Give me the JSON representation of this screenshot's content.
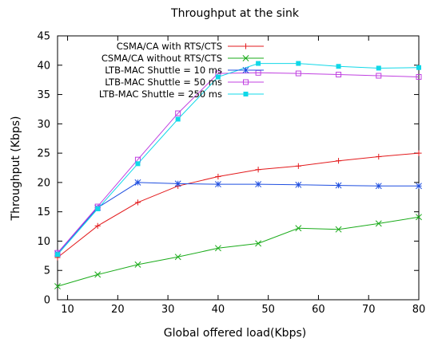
{
  "chart_data": {
    "type": "line",
    "title": "Throughput at the sink",
    "xlabel": "Global offered load(Kbps)",
    "ylabel": "Throughput (Kbps)",
    "xlim": [
      8,
      80
    ],
    "ylim": [
      0,
      45
    ],
    "x_ticks": [
      10,
      20,
      30,
      40,
      50,
      60,
      70,
      80
    ],
    "y_ticks": [
      0,
      5,
      10,
      15,
      20,
      25,
      30,
      35,
      40,
      45
    ],
    "grid": false,
    "legend_position": "top-right",
    "series": [
      {
        "name": "CSMA/CA with RTS/CTS",
        "color": "#e31a1c",
        "marker": "plus",
        "x": [
          8,
          16,
          24,
          32,
          40,
          48,
          56,
          64,
          72,
          80
        ],
        "y": [
          7.2,
          12.6,
          16.6,
          19.4,
          21.0,
          22.2,
          22.8,
          23.7,
          24.4,
          25.0
        ]
      },
      {
        "name": "CSMA/CA without RTS/CTS",
        "color": "#1aab1a",
        "marker": "x",
        "x": [
          8,
          16,
          24,
          32,
          40,
          48,
          56,
          64,
          72,
          80
        ],
        "y": [
          2.3,
          4.3,
          6.0,
          7.3,
          8.8,
          9.6,
          12.2,
          12.0,
          13.0,
          14.1
        ]
      },
      {
        "name": "LTB-MAC Shuttle = 10 ms",
        "color": "#1f4fe0",
        "marker": "star",
        "x": [
          8,
          16,
          24,
          32,
          40,
          48,
          56,
          64,
          72,
          80
        ],
        "y": [
          7.9,
          15.7,
          20.0,
          19.8,
          19.7,
          19.7,
          19.6,
          19.5,
          19.4,
          19.4
        ]
      },
      {
        "name": "LTB-MAC Shuttle = 50 ms",
        "color": "#c040e0",
        "marker": "square-open",
        "x": [
          8,
          16,
          24,
          32,
          40,
          48,
          56,
          64,
          72,
          80
        ],
        "y": [
          8.0,
          15.9,
          23.9,
          31.8,
          38.6,
          38.7,
          38.6,
          38.4,
          38.2,
          38.0
        ]
      },
      {
        "name": "LTB-MAC Shuttle = 250 ms",
        "color": "#10d8e8",
        "marker": "square-filled",
        "x": [
          8,
          16,
          24,
          32,
          40,
          48,
          56,
          64,
          72,
          80
        ],
        "y": [
          7.7,
          15.5,
          23.2,
          30.8,
          38.0,
          40.3,
          40.3,
          39.8,
          39.5,
          39.6
        ]
      }
    ]
  }
}
